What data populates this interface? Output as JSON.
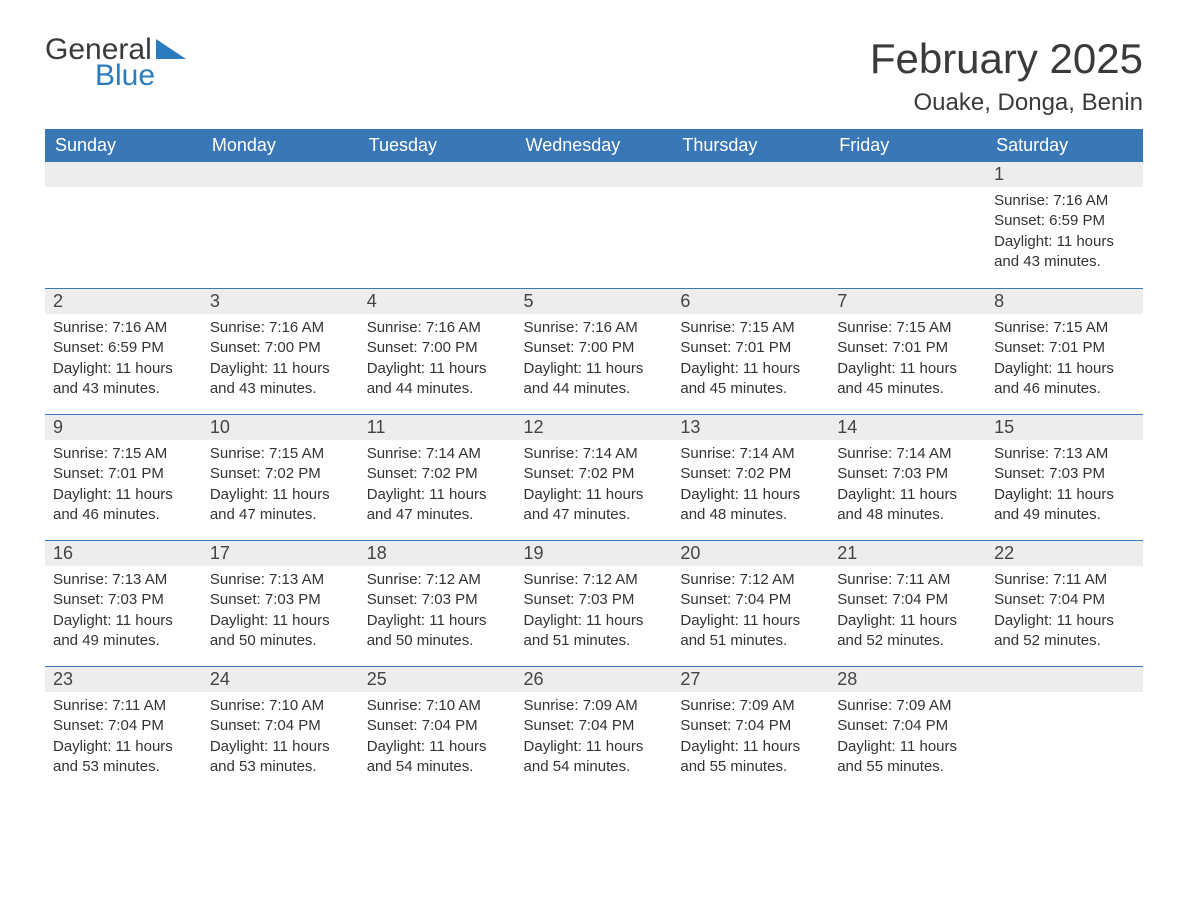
{
  "branding": {
    "text1": "General",
    "text2": "Blue",
    "color_text": "#3a3a3a",
    "color_accent": "#2b7bbf"
  },
  "title": "February 2025",
  "location": "Ouake, Donga, Benin",
  "colors": {
    "header_bg": "#3a77b6",
    "header_text": "#ffffff",
    "daynum_bg": "#ededed",
    "rule": "#3a77b6",
    "body_text": "#333333",
    "page_bg": "#ffffff"
  },
  "fonts": {
    "title_size_pt": 32,
    "location_size_pt": 18,
    "header_size_pt": 14,
    "body_size_pt": 11
  },
  "weekdays": [
    "Sunday",
    "Monday",
    "Tuesday",
    "Wednesday",
    "Thursday",
    "Friday",
    "Saturday"
  ],
  "weeks": [
    [
      null,
      null,
      null,
      null,
      null,
      null,
      {
        "day": "1",
        "sunrise": "Sunrise: 7:16 AM",
        "sunset": "Sunset: 6:59 PM",
        "daylight": "Daylight: 11 hours and 43 minutes."
      }
    ],
    [
      {
        "day": "2",
        "sunrise": "Sunrise: 7:16 AM",
        "sunset": "Sunset: 6:59 PM",
        "daylight": "Daylight: 11 hours and 43 minutes."
      },
      {
        "day": "3",
        "sunrise": "Sunrise: 7:16 AM",
        "sunset": "Sunset: 7:00 PM",
        "daylight": "Daylight: 11 hours and 43 minutes."
      },
      {
        "day": "4",
        "sunrise": "Sunrise: 7:16 AM",
        "sunset": "Sunset: 7:00 PM",
        "daylight": "Daylight: 11 hours and 44 minutes."
      },
      {
        "day": "5",
        "sunrise": "Sunrise: 7:16 AM",
        "sunset": "Sunset: 7:00 PM",
        "daylight": "Daylight: 11 hours and 44 minutes."
      },
      {
        "day": "6",
        "sunrise": "Sunrise: 7:15 AM",
        "sunset": "Sunset: 7:01 PM",
        "daylight": "Daylight: 11 hours and 45 minutes."
      },
      {
        "day": "7",
        "sunrise": "Sunrise: 7:15 AM",
        "sunset": "Sunset: 7:01 PM",
        "daylight": "Daylight: 11 hours and 45 minutes."
      },
      {
        "day": "8",
        "sunrise": "Sunrise: 7:15 AM",
        "sunset": "Sunset: 7:01 PM",
        "daylight": "Daylight: 11 hours and 46 minutes."
      }
    ],
    [
      {
        "day": "9",
        "sunrise": "Sunrise: 7:15 AM",
        "sunset": "Sunset: 7:01 PM",
        "daylight": "Daylight: 11 hours and 46 minutes."
      },
      {
        "day": "10",
        "sunrise": "Sunrise: 7:15 AM",
        "sunset": "Sunset: 7:02 PM",
        "daylight": "Daylight: 11 hours and 47 minutes."
      },
      {
        "day": "11",
        "sunrise": "Sunrise: 7:14 AM",
        "sunset": "Sunset: 7:02 PM",
        "daylight": "Daylight: 11 hours and 47 minutes."
      },
      {
        "day": "12",
        "sunrise": "Sunrise: 7:14 AM",
        "sunset": "Sunset: 7:02 PM",
        "daylight": "Daylight: 11 hours and 47 minutes."
      },
      {
        "day": "13",
        "sunrise": "Sunrise: 7:14 AM",
        "sunset": "Sunset: 7:02 PM",
        "daylight": "Daylight: 11 hours and 48 minutes."
      },
      {
        "day": "14",
        "sunrise": "Sunrise: 7:14 AM",
        "sunset": "Sunset: 7:03 PM",
        "daylight": "Daylight: 11 hours and 48 minutes."
      },
      {
        "day": "15",
        "sunrise": "Sunrise: 7:13 AM",
        "sunset": "Sunset: 7:03 PM",
        "daylight": "Daylight: 11 hours and 49 minutes."
      }
    ],
    [
      {
        "day": "16",
        "sunrise": "Sunrise: 7:13 AM",
        "sunset": "Sunset: 7:03 PM",
        "daylight": "Daylight: 11 hours and 49 minutes."
      },
      {
        "day": "17",
        "sunrise": "Sunrise: 7:13 AM",
        "sunset": "Sunset: 7:03 PM",
        "daylight": "Daylight: 11 hours and 50 minutes."
      },
      {
        "day": "18",
        "sunrise": "Sunrise: 7:12 AM",
        "sunset": "Sunset: 7:03 PM",
        "daylight": "Daylight: 11 hours and 50 minutes."
      },
      {
        "day": "19",
        "sunrise": "Sunrise: 7:12 AM",
        "sunset": "Sunset: 7:03 PM",
        "daylight": "Daylight: 11 hours and 51 minutes."
      },
      {
        "day": "20",
        "sunrise": "Sunrise: 7:12 AM",
        "sunset": "Sunset: 7:04 PM",
        "daylight": "Daylight: 11 hours and 51 minutes."
      },
      {
        "day": "21",
        "sunrise": "Sunrise: 7:11 AM",
        "sunset": "Sunset: 7:04 PM",
        "daylight": "Daylight: 11 hours and 52 minutes."
      },
      {
        "day": "22",
        "sunrise": "Sunrise: 7:11 AM",
        "sunset": "Sunset: 7:04 PM",
        "daylight": "Daylight: 11 hours and 52 minutes."
      }
    ],
    [
      {
        "day": "23",
        "sunrise": "Sunrise: 7:11 AM",
        "sunset": "Sunset: 7:04 PM",
        "daylight": "Daylight: 11 hours and 53 minutes."
      },
      {
        "day": "24",
        "sunrise": "Sunrise: 7:10 AM",
        "sunset": "Sunset: 7:04 PM",
        "daylight": "Daylight: 11 hours and 53 minutes."
      },
      {
        "day": "25",
        "sunrise": "Sunrise: 7:10 AM",
        "sunset": "Sunset: 7:04 PM",
        "daylight": "Daylight: 11 hours and 54 minutes."
      },
      {
        "day": "26",
        "sunrise": "Sunrise: 7:09 AM",
        "sunset": "Sunset: 7:04 PM",
        "daylight": "Daylight: 11 hours and 54 minutes."
      },
      {
        "day": "27",
        "sunrise": "Sunrise: 7:09 AM",
        "sunset": "Sunset: 7:04 PM",
        "daylight": "Daylight: 11 hours and 55 minutes."
      },
      {
        "day": "28",
        "sunrise": "Sunrise: 7:09 AM",
        "sunset": "Sunset: 7:04 PM",
        "daylight": "Daylight: 11 hours and 55 minutes."
      },
      null
    ]
  ]
}
